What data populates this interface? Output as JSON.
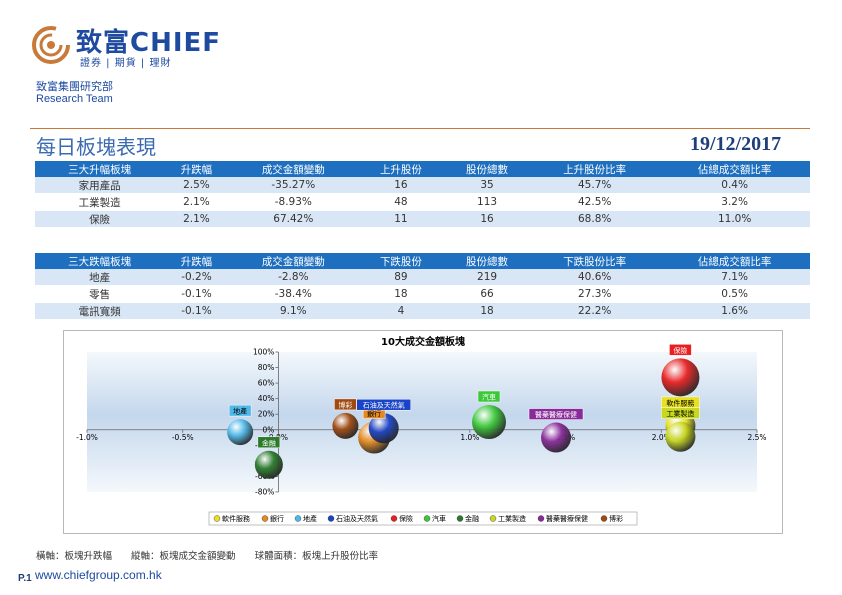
{
  "header": {
    "brand": "致富CHIEF",
    "tagline": "證券 | 期貨 | 理財",
    "group_name": "致富集團研究部",
    "team_name": "Research Team"
  },
  "title": "每日板塊表現",
  "date": "19/12/2017",
  "colors": {
    "brand": "#1e4aa0",
    "table_header": "#1e6fc0",
    "row_alt": "#d8e6f5",
    "rule": "#c87a3a"
  },
  "top_table": {
    "headers": [
      "三大升幅板塊",
      "升跌幅",
      "成交金額變動",
      "上升股份",
      "股份總數",
      "上升股份比率",
      "佔總成交額比率"
    ],
    "rows": [
      [
        "家用產品",
        "2.5%",
        "-35.27%",
        "16",
        "35",
        "45.7%",
        "0.4%"
      ],
      [
        "工業製造",
        "2.1%",
        "-8.93%",
        "48",
        "113",
        "42.5%",
        "3.2%"
      ],
      [
        "保險",
        "2.1%",
        "67.42%",
        "11",
        "16",
        "68.8%",
        "11.0%"
      ]
    ]
  },
  "bottom_table": {
    "headers": [
      "三大跌幅板塊",
      "升跌幅",
      "成交金額變動",
      "下跌股份",
      "股份總數",
      "下跌股份比率",
      "佔總成交額比率"
    ],
    "rows": [
      [
        "地產",
        "-0.2%",
        "-2.8%",
        "89",
        "219",
        "40.6%",
        "7.1%"
      ],
      [
        "零售",
        "-0.1%",
        "-38.4%",
        "18",
        "66",
        "27.3%",
        "0.5%"
      ],
      [
        "電訊寬頻",
        "-0.1%",
        "9.1%",
        "4",
        "18",
        "22.2%",
        "1.6%"
      ]
    ]
  },
  "chart_data": {
    "type": "scatter",
    "title": "10大成交金額板塊",
    "xlim": [
      -1.0,
      2.5
    ],
    "ylim": [
      -80,
      100
    ],
    "x_ticks": [
      "-1.0%",
      "-0.5%",
      "0.0%",
      "0.5%",
      "1.0%",
      "1.5%",
      "2.0%",
      "2.5%"
    ],
    "x_tick_values": [
      -1.0,
      -0.5,
      0.0,
      0.5,
      1.0,
      1.5,
      2.0,
      2.5
    ],
    "y_ticks": [
      "100%",
      "80%",
      "60%",
      "40%",
      "20%",
      "0%",
      "-20%",
      "-40%",
      "-60%",
      "-80%"
    ],
    "y_tick_values": [
      100,
      80,
      60,
      40,
      20,
      0,
      -20,
      -40,
      -60,
      -80
    ],
    "grid": false,
    "legend_position": "bottom",
    "series": [
      {
        "name": "軟件服務",
        "x": 2.1,
        "y": 5,
        "size": 15,
        "color": "#e8e020",
        "label": "軟件服務"
      },
      {
        "name": "銀行",
        "x": 0.5,
        "y": -10,
        "size": 16,
        "color": "#e58a20",
        "label": "銀行"
      },
      {
        "name": "地產",
        "x": -0.2,
        "y": -3,
        "size": 13,
        "color": "#4fb8e8",
        "label": "地產"
      },
      {
        "name": "石油及天然氣",
        "x": 0.55,
        "y": 2,
        "size": 15,
        "color": "#1a44c8",
        "label": "石油及天然氣"
      },
      {
        "name": "保險",
        "x": 2.1,
        "y": 67.42,
        "size": 19,
        "color": "#e82020",
        "label": "保險"
      },
      {
        "name": "汽車",
        "x": 1.1,
        "y": 10,
        "size": 17,
        "color": "#3cc838",
        "label": "汽車"
      },
      {
        "name": "金融",
        "x": -0.05,
        "y": -45,
        "size": 14,
        "color": "#2a7a2a",
        "label": "金融"
      },
      {
        "name": "工業製造",
        "x": 2.1,
        "y": -8.93,
        "size": 15,
        "color": "#c8d820",
        "label": "工業製造"
      },
      {
        "name": "醫藥醫療保健",
        "x": 1.45,
        "y": -10,
        "size": 15,
        "color": "#8a2a9a",
        "label": "醫藥醫療保健"
      },
      {
        "name": "博彩",
        "x": 0.35,
        "y": 5,
        "size": 13,
        "color": "#a04a10",
        "label": "博彩"
      }
    ]
  },
  "footnote": {
    "x_axis": "橫軸：板塊升跌幅",
    "y_axis": "縱軸：板塊成交金額變動",
    "bubble": "球體面積：板塊上升股份比率"
  },
  "page_number": "P.1",
  "website": "www.chiefgroup.com.hk"
}
